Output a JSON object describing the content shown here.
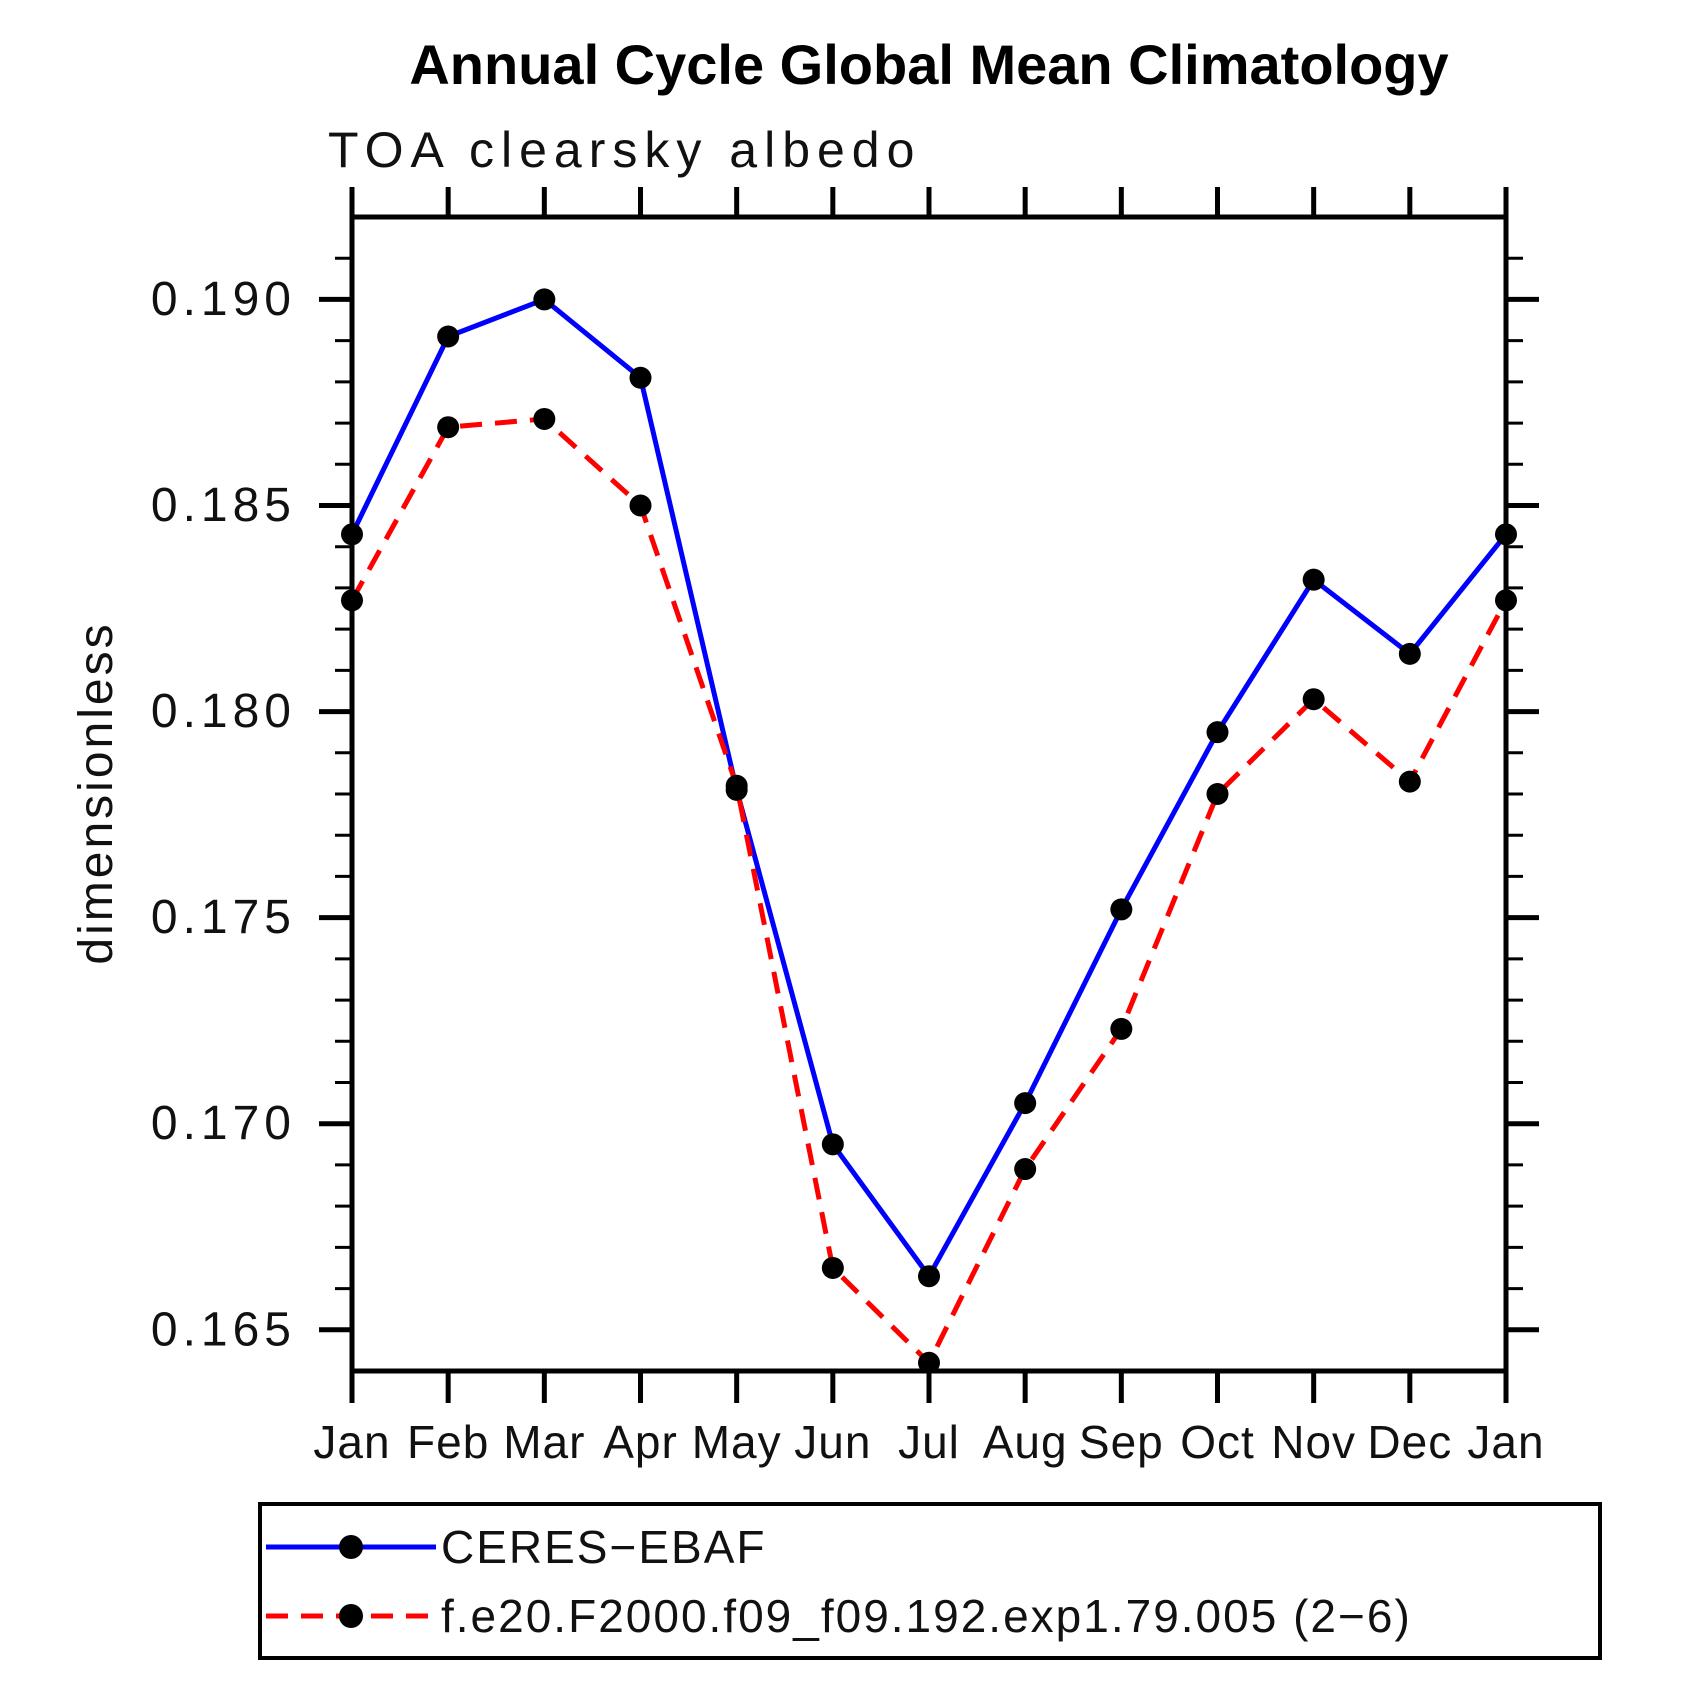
{
  "title": "Annual Cycle Global Mean Climatology",
  "subtitle": "TOA clearsky albedo",
  "y_axis_label": "dimensionless",
  "chart_data": {
    "type": "line",
    "categories": [
      "Jan",
      "Feb",
      "Mar",
      "Apr",
      "May",
      "Jun",
      "Jul",
      "Aug",
      "Sep",
      "Oct",
      "Nov",
      "Dec",
      "Jan"
    ],
    "series": [
      {
        "name": "CERES−EBAF",
        "color": "#0000ff",
        "line_style": "solid",
        "marker": "filled-circle",
        "marker_color": "#000000",
        "values": [
          0.1843,
          0.1891,
          0.19,
          0.1881,
          0.1781,
          0.1695,
          0.1663,
          0.1705,
          0.1752,
          0.1795,
          0.1832,
          0.1814,
          0.1843
        ]
      },
      {
        "name": "f.e20.F2000.f09_f09.192.exp1.79.005 (2−6)",
        "color": "#ff0000",
        "line_style": "dashed",
        "marker": "filled-circle",
        "marker_color": "#000000",
        "values": [
          0.1827,
          0.1869,
          0.1871,
          0.185,
          0.1782,
          0.1665,
          0.1642,
          0.1689,
          0.1723,
          0.178,
          0.1803,
          0.1783,
          0.1827
        ]
      }
    ],
    "xlabel": "",
    "ylabel": "dimensionless",
    "ylim": [
      0.164,
      0.192
    ],
    "y_major_tick_step": 0.005,
    "y_minor_tick_step": 0.001,
    "y_tick_labels": [
      "0.165",
      "0.170",
      "0.175",
      "0.180",
      "0.185",
      "0.190"
    ],
    "y_tick_values": [
      0.165,
      0.17,
      0.175,
      0.18,
      0.185,
      0.19
    ],
    "grid": false,
    "legend_position": "below-plot-boxed"
  },
  "colors": {
    "background": "#ffffff",
    "axis": "#000000",
    "title": "#000000",
    "series1": "#0000ff",
    "series2": "#ff0000",
    "marker": "#000000"
  }
}
